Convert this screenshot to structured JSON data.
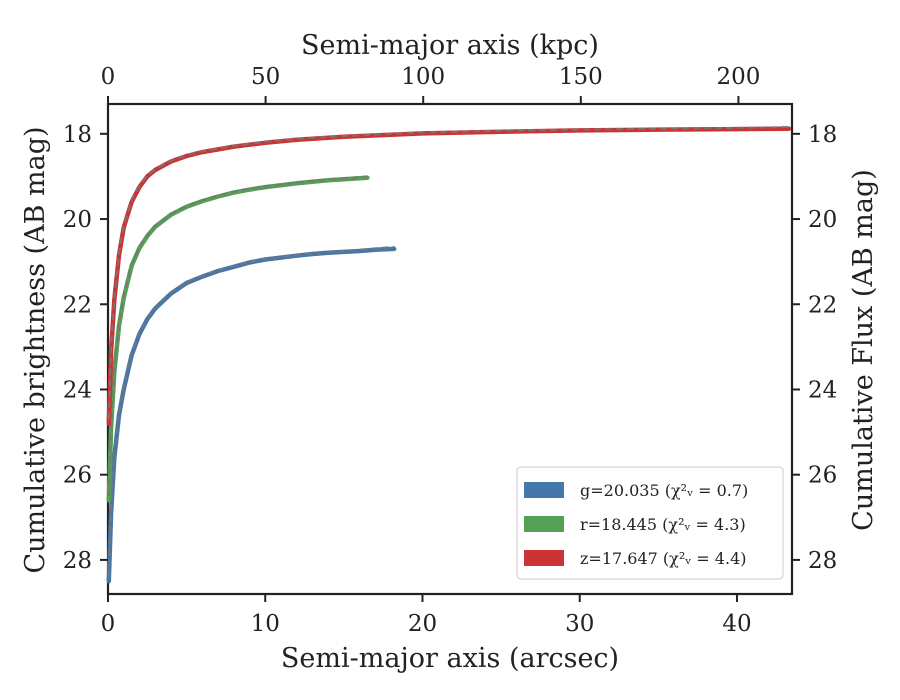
{
  "chart_data": {
    "type": "line",
    "xlabel_bottom": "Semi-major axis (arcsec)",
    "xlabel_top": "Semi-major axis (kpc)",
    "ylabel_left": "Cumulative brightness (AB mag)",
    "ylabel_right": "Cumulative Flux (AB mag)",
    "xlim": [
      0,
      43.5
    ],
    "ylim": [
      28.8,
      17.3
    ],
    "xlim_top": [
      0,
      217
    ],
    "y_inverted": true,
    "xticks_bottom": [
      0,
      10,
      20,
      30,
      40
    ],
    "xticks_top": [
      0,
      50,
      100,
      150,
      200
    ],
    "yticks_left": [
      18,
      20,
      22,
      24,
      26,
      28
    ],
    "yticks_right": [
      18,
      20,
      22,
      24,
      26,
      28
    ],
    "grid": false,
    "legend_position": "lower-right",
    "series": [
      {
        "name": "g=20.035 (χ²ᵥ = 0.7)",
        "color": "#4477aa",
        "x": [
          0.05,
          0.2,
          0.4,
          0.7,
          1.0,
          1.5,
          2.0,
          2.5,
          3.0,
          4.0,
          5.0,
          6.0,
          7.0,
          8.0,
          9.0,
          10.0,
          12.0,
          13.0,
          14.0,
          15.0,
          16.0,
          17.0,
          18.2
        ],
        "y": [
          28.5,
          26.9,
          25.6,
          24.6,
          24.0,
          23.2,
          22.7,
          22.35,
          22.1,
          21.75,
          21.5,
          21.35,
          21.22,
          21.12,
          21.02,
          20.95,
          20.86,
          20.82,
          20.79,
          20.77,
          20.75,
          20.72,
          20.7
        ],
        "model_y": [
          28.4,
          26.8,
          25.5,
          24.55,
          23.95,
          23.15,
          22.68,
          22.33,
          22.08,
          21.73,
          21.48,
          21.33,
          21.2,
          21.1,
          21.0,
          20.93,
          20.85,
          20.81,
          20.78,
          20.75,
          20.72,
          20.69,
          20.65
        ]
      },
      {
        "name": "r=18.445 (χ²ᵥ = 4.3)",
        "color": "#55a055",
        "x": [
          0.05,
          0.2,
          0.4,
          0.7,
          1.0,
          1.5,
          2.0,
          2.5,
          3.0,
          4.0,
          5.0,
          6.0,
          7.0,
          8.0,
          9.0,
          10.0,
          12.0,
          14.0,
          16.5
        ],
        "y": [
          26.6,
          24.9,
          23.6,
          22.5,
          21.85,
          21.1,
          20.68,
          20.4,
          20.18,
          19.9,
          19.71,
          19.58,
          19.47,
          19.38,
          19.31,
          19.25,
          19.16,
          19.09,
          19.03
        ],
        "model_y": [
          26.5,
          24.8,
          23.5,
          22.45,
          21.8,
          21.07,
          20.65,
          20.37,
          20.16,
          19.88,
          19.69,
          19.56,
          19.45,
          19.36,
          19.29,
          19.23,
          19.14,
          19.07,
          19.0
        ]
      },
      {
        "name": "z=17.647 (χ²ᵥ = 4.4)",
        "color": "#cc3333",
        "x": [
          0.05,
          0.2,
          0.4,
          0.7,
          1.0,
          1.5,
          2.0,
          2.5,
          3.0,
          4.0,
          5.0,
          6.0,
          8.0,
          10.0,
          12.0,
          15.0,
          18.0,
          20.0,
          25.0,
          30.0,
          35.0,
          40.0,
          43.3
        ],
        "y": [
          24.8,
          23.1,
          21.9,
          20.85,
          20.2,
          19.6,
          19.25,
          19.0,
          18.85,
          18.65,
          18.52,
          18.43,
          18.3,
          18.21,
          18.14,
          18.07,
          18.02,
          17.99,
          17.95,
          17.92,
          17.9,
          17.89,
          17.88
        ],
        "model_y": [
          24.7,
          23.0,
          21.85,
          20.8,
          20.17,
          19.57,
          19.22,
          18.98,
          18.83,
          18.63,
          18.5,
          18.41,
          18.28,
          18.19,
          18.12,
          18.05,
          18.0,
          17.97,
          17.93,
          17.9,
          17.88,
          17.86,
          17.84
        ]
      }
    ],
    "model_line_style": "dashed",
    "model_line_color": "#777777"
  }
}
